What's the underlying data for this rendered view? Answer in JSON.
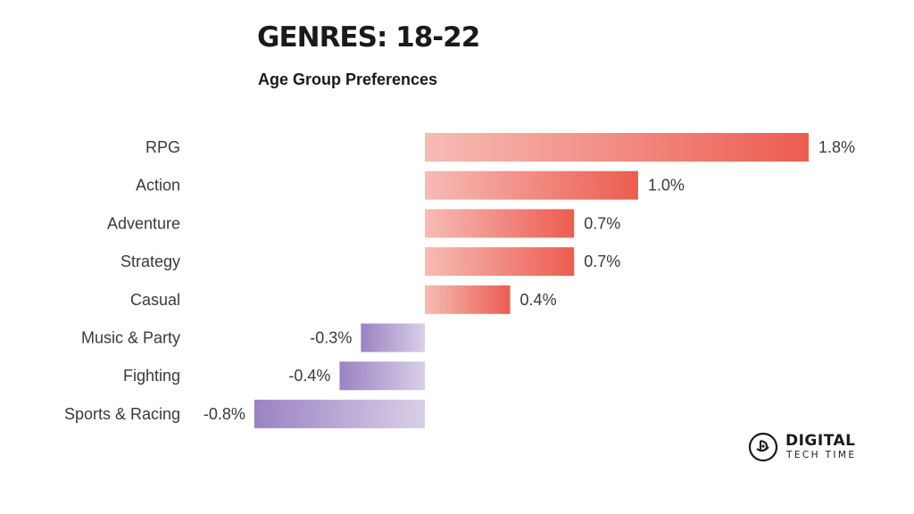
{
  "chart_data": {
    "type": "bar",
    "orientation": "horizontal",
    "title": "GENRES: 18-22",
    "subtitle": "Age Group Preferences",
    "categories": [
      "RPG",
      "Action",
      "Adventure",
      "Strategy",
      "Casual",
      "Music & Party",
      "Fighting",
      "Sports & Racing"
    ],
    "values": [
      1.8,
      1.0,
      0.7,
      0.7,
      0.4,
      -0.3,
      -0.4,
      -0.8
    ],
    "value_labels": [
      "1.8%",
      "1.0%",
      "0.7%",
      "0.7%",
      "0.4%",
      "-0.3%",
      "-0.4%",
      "-0.8%"
    ],
    "xlim": [
      -0.8,
      1.8
    ],
    "unit": "%",
    "grid": false,
    "legend": "none",
    "colors": {
      "positive_light": "#f6bcb6",
      "positive_dark": "#ec5c50",
      "negative_light": "#d9cfe8",
      "negative_dark": "#9a83c2"
    }
  },
  "brand": {
    "line1": "DIGITAL",
    "line2": "TECH TIME"
  }
}
